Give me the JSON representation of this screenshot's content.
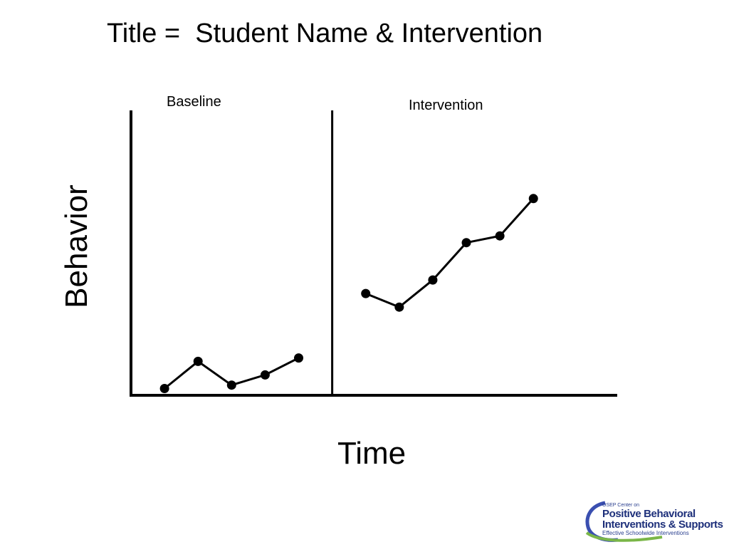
{
  "chart_data": {
    "type": "line",
    "title": "Title =  Student Name & Intervention",
    "xlabel": "Time",
    "ylabel": "Behavior",
    "grid": false,
    "legend": "none",
    "phases": [
      {
        "label": "Baseline",
        "x": [
          1,
          2,
          3,
          4,
          5
        ],
        "y": [
          1,
          5,
          1.5,
          3,
          5.5
        ]
      },
      {
        "label": "Intervention",
        "x": [
          7,
          8,
          9,
          10,
          11,
          12
        ],
        "y": [
          15,
          13,
          17,
          22.5,
          23.5,
          29
        ]
      }
    ],
    "phase_change_x": 6,
    "xlim": [
      0,
      14.5
    ],
    "ylim": [
      0,
      42
    ],
    "line_color": "#000000"
  },
  "logo": {
    "line1": "OSEP Center on",
    "line2": "Positive Behavioral",
    "line3": "Interventions & Supports",
    "line4": "Effective Schoolwide Interventions",
    "ring_color": "#3a4fb0",
    "swoosh_color": "#7ab648"
  }
}
